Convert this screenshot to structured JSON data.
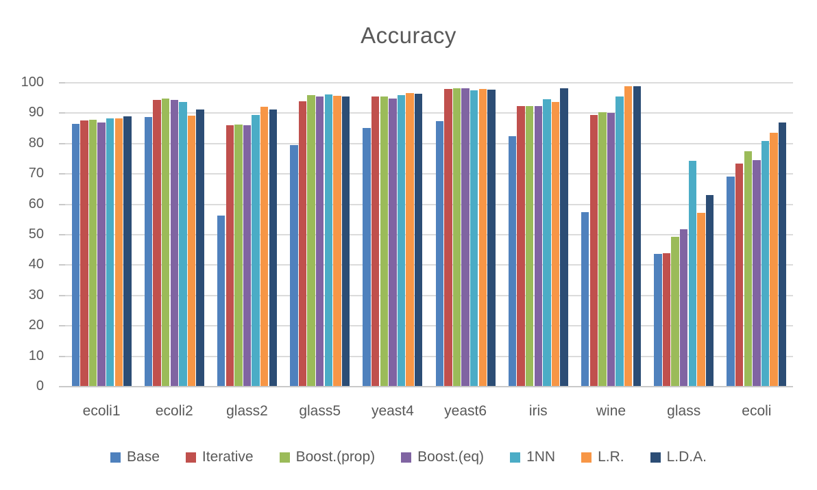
{
  "chart_data": {
    "type": "bar",
    "title": "Accuracy",
    "xlabel": "",
    "ylabel": "",
    "categories": [
      "ecoli1",
      "ecoli2",
      "glass2",
      "glass5",
      "yeast4",
      "yeast6",
      "iris",
      "wine",
      "glass",
      "ecoli"
    ],
    "series": [
      {
        "name": "Base",
        "color": "#4F81BD",
        "values": [
          86.3,
          88.6,
          56.0,
          79.3,
          85.0,
          87.1,
          82.2,
          57.3,
          43.5,
          69.0
        ]
      },
      {
        "name": "Iterative",
        "color": "#C0504D",
        "values": [
          87.3,
          94.2,
          85.9,
          93.8,
          95.2,
          97.8,
          92.2,
          89.3,
          43.8,
          73.3
        ]
      },
      {
        "name": "Boost.(prop)",
        "color": "#9BBB59",
        "values": [
          87.7,
          94.6,
          86.1,
          95.8,
          95.3,
          97.9,
          92.1,
          90.1,
          49.0,
          77.3
        ]
      },
      {
        "name": "Boost.(eq)",
        "color": "#8064A2",
        "values": [
          86.7,
          94.2,
          85.8,
          95.2,
          94.5,
          97.9,
          92.1,
          89.8,
          51.6,
          74.4
        ]
      },
      {
        "name": "1NN",
        "color": "#4BACC6",
        "values": [
          88.0,
          93.5,
          89.3,
          96.0,
          95.8,
          97.4,
          94.4,
          95.3,
          74.2,
          80.6
        ]
      },
      {
        "name": "L.R.",
        "color": "#F79646",
        "values": [
          88.0,
          89.0,
          91.9,
          95.6,
          96.4,
          97.7,
          93.4,
          98.7,
          57.0,
          83.3
        ]
      },
      {
        "name": "L.D.A.",
        "color": "#2C4D75",
        "values": [
          88.7,
          91.0,
          91.1,
          95.3,
          96.1,
          97.5,
          98.0,
          98.7,
          62.8,
          86.7
        ]
      }
    ],
    "yticks": [
      0,
      10,
      20,
      30,
      40,
      50,
      60,
      70,
      80,
      90,
      100
    ],
    "ytick_labels": [
      "0",
      "10",
      "20",
      "30",
      "40",
      "50",
      "60",
      "70",
      "80",
      "90",
      "100"
    ],
    "ylim": [
      0,
      100
    ],
    "grid": true,
    "legend_position": "bottom"
  },
  "style": {
    "text_color": "#595959",
    "gridline_color": "#DBDBDB",
    "axis_line_color": "#C9C9C9",
    "background": "#FFFFFF"
  }
}
